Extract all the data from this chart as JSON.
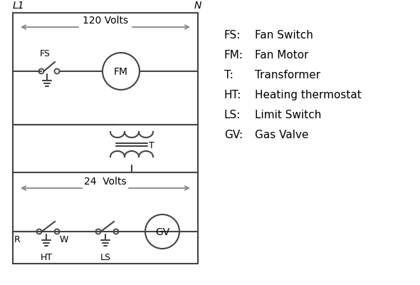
{
  "bg_color": "#ffffff",
  "line_color": "#444444",
  "arrow_color": "#888888",
  "text_color": "#000000",
  "legend": [
    [
      "FS:",
      "Fan Switch"
    ],
    [
      "FM:",
      "Fan Motor"
    ],
    [
      "T:",
      "Transformer"
    ],
    [
      "HT:",
      "Heating thermostat"
    ],
    [
      "LS:",
      "Limit Switch"
    ],
    [
      "GV:",
      "Gas Valve"
    ]
  ],
  "volts_120": "120 Volts",
  "volts_24": "24  Volts",
  "L1_label": "L1",
  "N_label": "N"
}
